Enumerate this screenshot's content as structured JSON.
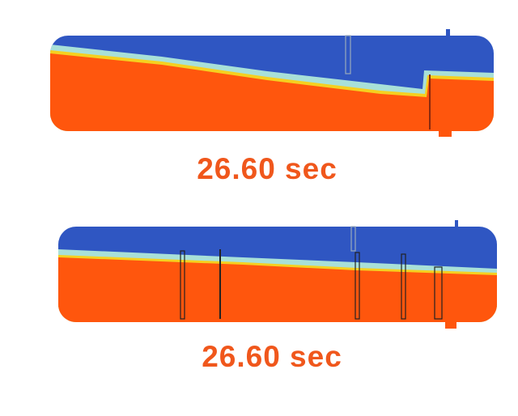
{
  "colors": {
    "gas": "#2f56c2",
    "liquid": "#ff560d",
    "interface_light": "#a8e0d8",
    "interface_yellow": "#f5d020",
    "label": "#f0571c"
  },
  "panels": [
    {
      "time_label": "26.60 sec"
    },
    {
      "time_label": "26.60 sec"
    }
  ]
}
